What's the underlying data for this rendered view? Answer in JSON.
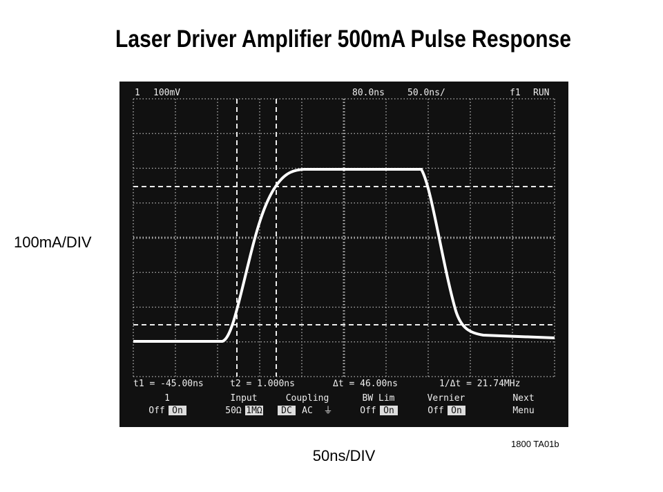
{
  "header": {
    "title": "Laser Driver Amplifier 500mA Pulse Response"
  },
  "y_label": "100mA/DIV",
  "x_label": "50ns/DIV",
  "figure_id": "1800 TA01b",
  "scope": {
    "top": [
      "1",
      "100mV",
      "80.0ns",
      "50.0ns/",
      "f1",
      "RUN"
    ],
    "readout": [
      "t1 = -45.00ns",
      "t2 = 1.000ns",
      "Δt = 46.00ns",
      "1/Δt = 21.74MHz"
    ],
    "menu": [
      {
        "label": "1",
        "options": [
          "Off",
          "On"
        ]
      },
      {
        "label": "Input",
        "options": [
          "50Ω",
          "1MΩ"
        ]
      },
      {
        "label": "Coupling",
        "options": [
          "DC",
          "AC",
          "⏚"
        ]
      },
      {
        "label": "BW Lim",
        "options": [
          "Off",
          "On"
        ]
      },
      {
        "label": "Vernier",
        "options": [
          "Off",
          "On"
        ]
      },
      {
        "label": "Next",
        "options": [
          "Menu"
        ]
      }
    ]
  }
}
